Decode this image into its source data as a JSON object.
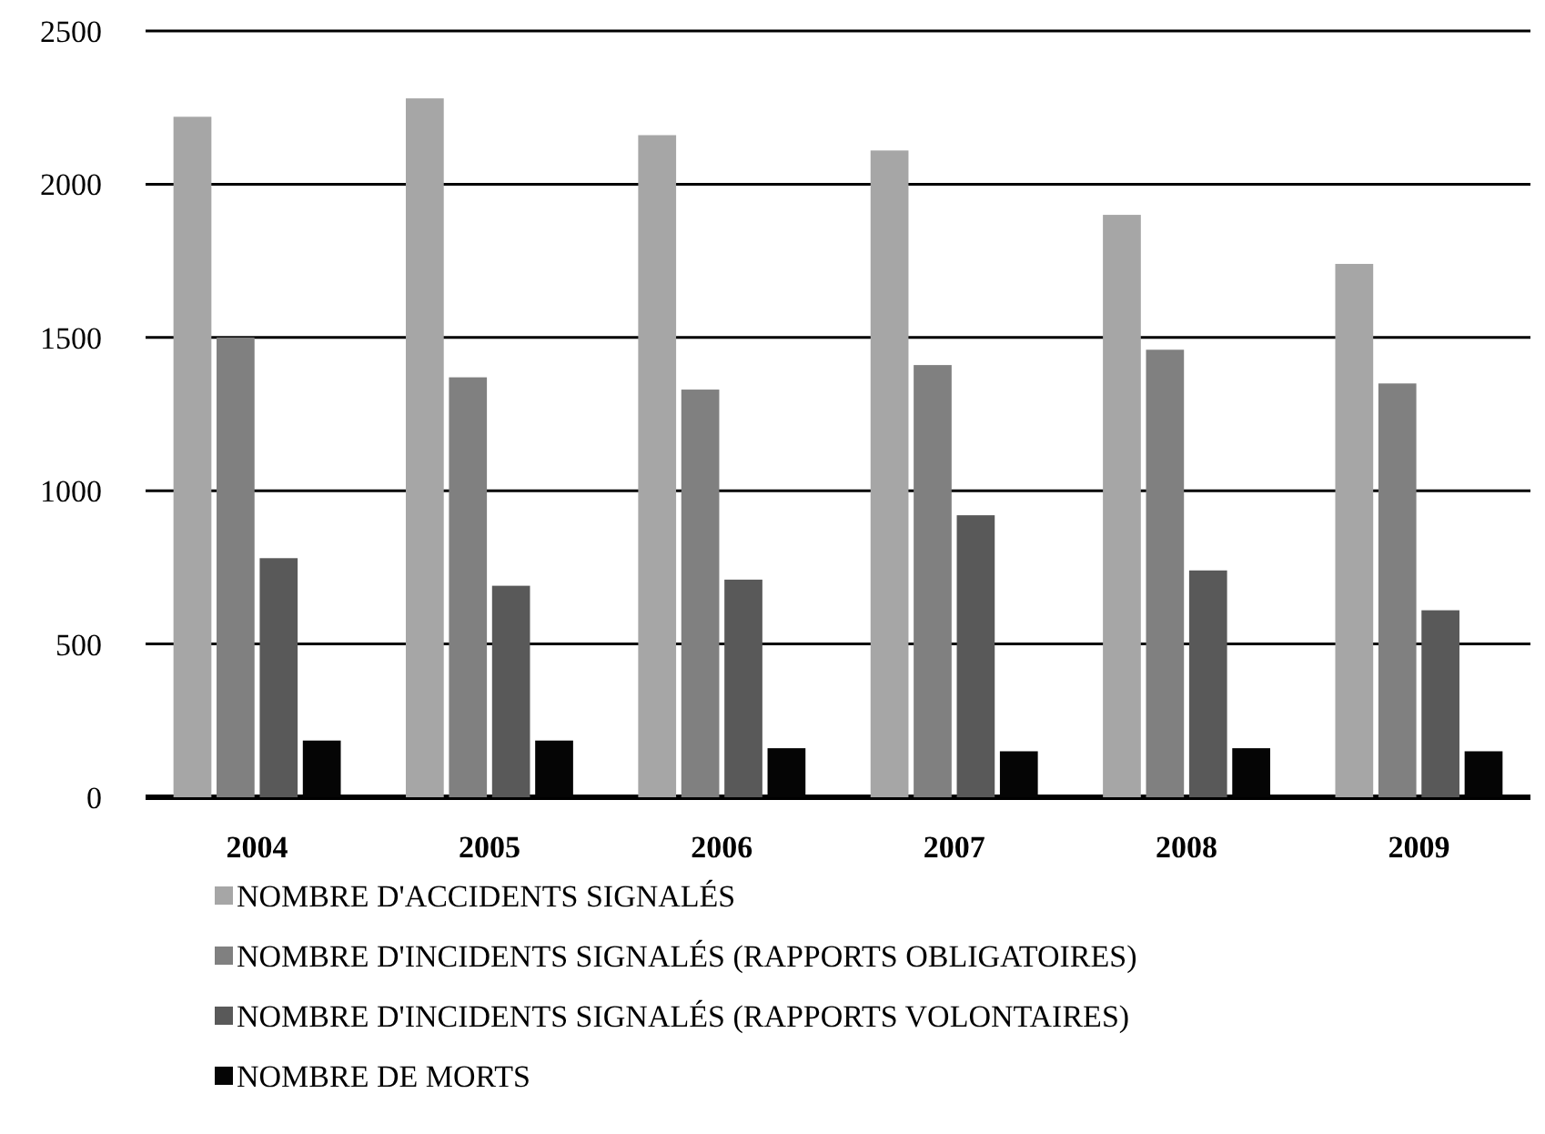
{
  "chart_data": {
    "type": "bar",
    "categories": [
      "2004",
      "2005",
      "2006",
      "2007",
      "2008",
      "2009"
    ],
    "series": [
      {
        "name": "NOMBRE D'ACCIDENTS SIGNALÉS",
        "color": "#a6a6a6",
        "values": [
          2220,
          2280,
          2160,
          2110,
          1900,
          1740
        ]
      },
      {
        "name": "NOMBRE D'INCIDENTS SIGNALÉS (RAPPORTS OBLIGATOIRES)",
        "color": "#808080",
        "values": [
          1500,
          1370,
          1330,
          1410,
          1460,
          1350
        ]
      },
      {
        "name": "NOMBRE D'INCIDENTS SIGNALÉS (RAPPORTS VOLONTAIRES)",
        "color": "#595959",
        "values": [
          780,
          690,
          710,
          920,
          740,
          610
        ]
      },
      {
        "name": "NOMBRE DE MORTS",
        "color": "#050505",
        "values": [
          185,
          185,
          160,
          150,
          160,
          150
        ]
      }
    ],
    "ylim": [
      0,
      2500
    ],
    "yticks": [
      0,
      500,
      1000,
      1500,
      2000,
      2500
    ],
    "grid": "y",
    "legend": "bottom"
  }
}
